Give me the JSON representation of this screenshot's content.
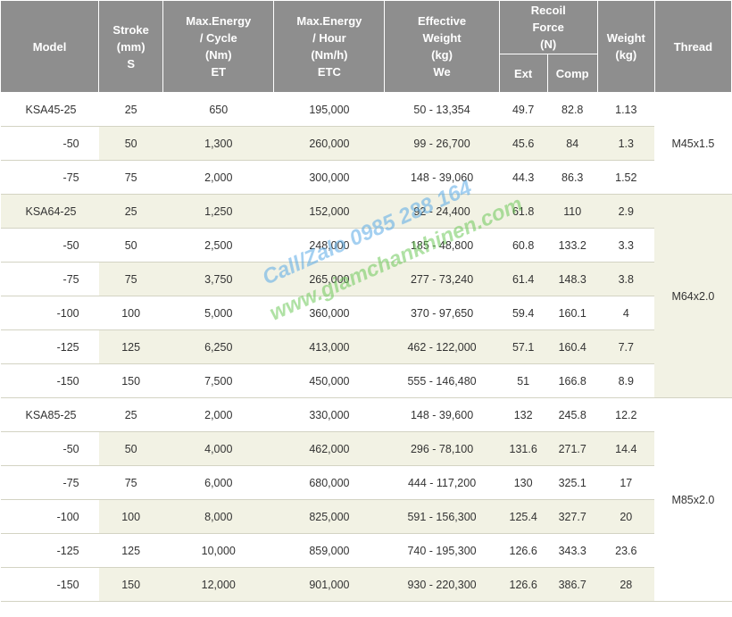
{
  "header": {
    "model": "Model",
    "stroke": [
      "Stroke",
      "(mm)",
      "S"
    ],
    "energy_cycle": [
      "Max.Energy",
      "/ Cycle",
      "(Nm)",
      "ET"
    ],
    "energy_hour": [
      "Max.Energy",
      "/ Hour",
      "(Nm/h)",
      "ETC"
    ],
    "effective_weight": [
      "Effective",
      "Weight",
      "(kg)",
      "We"
    ],
    "recoil_force": [
      "Recoil",
      "Force",
      "(N)"
    ],
    "recoil_ext": "Ext",
    "recoil_comp": "Comp",
    "weight": [
      "Weight",
      "(kg)"
    ],
    "thread": "Thread"
  },
  "groups": [
    {
      "thread": "M45x1.5",
      "rows": [
        {
          "model": "KSA45-25",
          "stroke": "25",
          "energy_cycle": "650",
          "energy_hour": "195,000",
          "effective_weight": "50 - 13,354",
          "ext": "49.7",
          "comp": "82.8",
          "weight": "1.13"
        },
        {
          "model": "-50",
          "stroke": "50",
          "energy_cycle": "1,300",
          "energy_hour": "260,000",
          "effective_weight": "99 - 26,700",
          "ext": "45.6",
          "comp": "84",
          "weight": "1.3"
        },
        {
          "model": "-75",
          "stroke": "75",
          "energy_cycle": "2,000",
          "energy_hour": "300,000",
          "effective_weight": "148 - 39,060",
          "ext": "44.3",
          "comp": "86.3",
          "weight": "1.52"
        }
      ]
    },
    {
      "thread": "M64x2.0",
      "rows": [
        {
          "model": "KSA64-25",
          "stroke": "25",
          "energy_cycle": "1,250",
          "energy_hour": "152,000",
          "effective_weight": "92 - 24,400",
          "ext": "61.8",
          "comp": "110",
          "weight": "2.9"
        },
        {
          "model": "-50",
          "stroke": "50",
          "energy_cycle": "2,500",
          "energy_hour": "248,000",
          "effective_weight": "185 - 48,800",
          "ext": "60.8",
          "comp": "133.2",
          "weight": "3.3"
        },
        {
          "model": "-75",
          "stroke": "75",
          "energy_cycle": "3,750",
          "energy_hour": "265,000",
          "effective_weight": "277 - 73,240",
          "ext": "61.4",
          "comp": "148.3",
          "weight": "3.8"
        },
        {
          "model": "-100",
          "stroke": "100",
          "energy_cycle": "5,000",
          "energy_hour": "360,000",
          "effective_weight": "370 - 97,650",
          "ext": "59.4",
          "comp": "160.1",
          "weight": "4"
        },
        {
          "model": "-125",
          "stroke": "125",
          "energy_cycle": "6,250",
          "energy_hour": "413,000",
          "effective_weight": "462 - 122,000",
          "ext": "57.1",
          "comp": "160.4",
          "weight": "7.7"
        },
        {
          "model": "-150",
          "stroke": "150",
          "energy_cycle": "7,500",
          "energy_hour": "450,000",
          "effective_weight": "555 - 146,480",
          "ext": "51",
          "comp": "166.8",
          "weight": "8.9"
        }
      ]
    },
    {
      "thread": "M85x2.0",
      "rows": [
        {
          "model": "KSA85-25",
          "stroke": "25",
          "energy_cycle": "2,000",
          "energy_hour": "330,000",
          "effective_weight": "148 - 39,600",
          "ext": "132",
          "comp": "245.8",
          "weight": "12.2"
        },
        {
          "model": "-50",
          "stroke": "50",
          "energy_cycle": "4,000",
          "energy_hour": "462,000",
          "effective_weight": "296 - 78,100",
          "ext": "131.6",
          "comp": "271.7",
          "weight": "14.4"
        },
        {
          "model": "-75",
          "stroke": "75",
          "energy_cycle": "6,000",
          "energy_hour": "680,000",
          "effective_weight": "444 - 117,200",
          "ext": "130",
          "comp": "325.1",
          "weight": "17"
        },
        {
          "model": "-100",
          "stroke": "100",
          "energy_cycle": "8,000",
          "energy_hour": "825,000",
          "effective_weight": "591 - 156,300",
          "ext": "125.4",
          "comp": "327.7",
          "weight": "20"
        },
        {
          "model": "-125",
          "stroke": "125",
          "energy_cycle": "10,000",
          "energy_hour": "859,000",
          "effective_weight": "740 - 195,300",
          "ext": "126.6",
          "comp": "343.3",
          "weight": "23.6"
        },
        {
          "model": "-150",
          "stroke": "150",
          "energy_cycle": "12,000",
          "energy_hour": "901,000",
          "effective_weight": "930 - 220,300",
          "ext": "126.6",
          "comp": "386.7",
          "weight": "28"
        }
      ]
    }
  ],
  "watermark": {
    "line1": "Call/Zalo 0985 288 164",
    "line2": "www.giamchankhinen.com"
  },
  "colors": {
    "header_bg": "#8e8e8e",
    "shade_bg": "#f2f2e4",
    "watermark_blue": "#5aaae6",
    "watermark_green": "#6ec85a"
  }
}
